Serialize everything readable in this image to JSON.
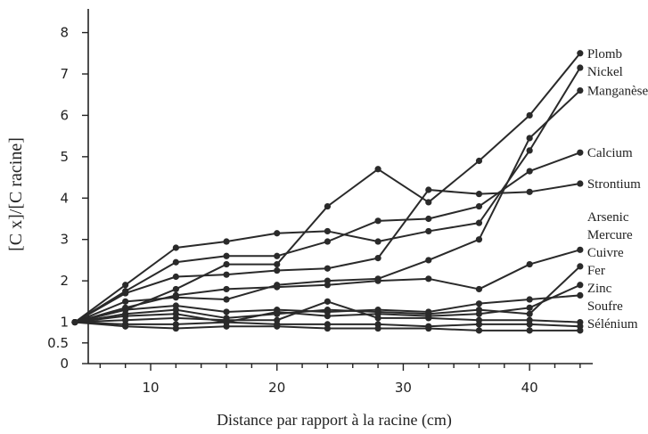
{
  "chart_data": {
    "type": "line",
    "title": "",
    "xlabel": "Distance par rapport à la racine (cm)",
    "ylabel": "[C x]/[C racine]",
    "xlim": [
      4,
      45
    ],
    "ylim": [
      0,
      8.4
    ],
    "x_ticks": [
      10,
      20,
      30,
      40
    ],
    "x_minor_ticks": [
      6,
      8,
      12,
      14,
      16,
      18,
      22,
      24,
      26,
      28,
      32,
      34,
      36,
      38,
      42,
      44
    ],
    "y_ticks": [
      {
        "value": 0,
        "label": "0"
      },
      {
        "value": 0.5,
        "label": "0.5"
      },
      {
        "value": 1,
        "label": "1"
      },
      {
        "value": 2,
        "label": "2"
      },
      {
        "value": 3,
        "label": "3"
      },
      {
        "value": 4,
        "label": "4"
      },
      {
        "value": 5,
        "label": "5"
      },
      {
        "value": 6,
        "label": "6"
      },
      {
        "value": 7,
        "label": "7"
      },
      {
        "value": 8,
        "label": "8"
      }
    ],
    "grid": false,
    "legend": "labels at right end of each series",
    "series": [
      {
        "name": "Plomb",
        "x": [
          4,
          8,
          12,
          16,
          20,
          24,
          28,
          32,
          36,
          40,
          44
        ],
        "values": [
          1,
          1.3,
          1.8,
          2.4,
          2.4,
          3.8,
          4.7,
          3.9,
          4.9,
          6.0,
          7.5
        ]
      },
      {
        "name": "Nickel",
        "x": [
          4,
          8,
          12,
          16,
          20,
          24,
          28,
          32,
          36,
          40,
          44
        ],
        "values": [
          1,
          1.9,
          2.8,
          2.95,
          3.15,
          3.2,
          2.95,
          3.2,
          3.4,
          5.15,
          7.15
        ]
      },
      {
        "name": "Manganèse",
        "x": [
          4,
          8,
          12,
          16,
          20,
          24,
          28,
          32,
          36,
          40,
          44
        ],
        "values": [
          1,
          1.5,
          1.6,
          1.55,
          1.9,
          2.0,
          2.05,
          2.5,
          3.0,
          5.45,
          6.6
        ]
      },
      {
        "name": "Calcium",
        "x": [
          4,
          8,
          12,
          16,
          20,
          24,
          28,
          32,
          36,
          40,
          44
        ],
        "values": [
          1,
          1.75,
          2.45,
          2.6,
          2.6,
          2.95,
          3.45,
          3.5,
          3.8,
          4.65,
          5.1
        ]
      },
      {
        "name": "Strontium",
        "x": [
          4,
          8,
          12,
          16,
          20,
          24,
          28,
          32,
          36,
          40,
          44
        ],
        "values": [
          1,
          1.7,
          2.1,
          2.15,
          2.25,
          2.3,
          2.55,
          4.2,
          4.1,
          4.15,
          4.35
        ]
      },
      {
        "name": "Arsenic",
        "x": [
          4,
          8,
          12,
          16,
          20,
          24,
          28,
          32,
          36,
          40,
          44
        ],
        "values": [
          1,
          1.35,
          1.65,
          1.8,
          1.85,
          1.9,
          2.0,
          2.05,
          1.8,
          2.4,
          2.75
        ]
      },
      {
        "name": "Mercure",
        "x": [
          4,
          8,
          12,
          16,
          20,
          24,
          28,
          32,
          36,
          40,
          44
        ],
        "values": [
          1,
          1.2,
          1.3,
          1.1,
          1.2,
          1.3,
          1.25,
          1.2,
          1.3,
          1.2,
          2.35
        ]
      },
      {
        "name": "Cuivre",
        "x": [
          4,
          8,
          12,
          16,
          20,
          24,
          28,
          32,
          36,
          40,
          44
        ],
        "values": [
          1,
          1.15,
          1.2,
          1.0,
          1.25,
          1.15,
          1.2,
          1.15,
          1.2,
          1.35,
          1.9
        ]
      },
      {
        "name": "Fer",
        "x": [
          4,
          8,
          12,
          16,
          20,
          24,
          28,
          32,
          36,
          40,
          44
        ],
        "values": [
          1,
          1.3,
          1.4,
          1.25,
          1.3,
          1.25,
          1.3,
          1.25,
          1.45,
          1.55,
          1.65
        ]
      },
      {
        "name": "Zinc",
        "x": [
          4,
          8,
          12,
          16,
          20,
          24,
          28,
          32,
          36,
          40,
          44
        ],
        "values": [
          1,
          1.05,
          1.1,
          1.05,
          1.05,
          1.5,
          1.1,
          1.1,
          1.05,
          1.05,
          1.0
        ]
      },
      {
        "name": "Soufre",
        "x": [
          4,
          8,
          12,
          16,
          20,
          24,
          28,
          32,
          36,
          40,
          44
        ],
        "values": [
          1,
          0.95,
          0.95,
          1.0,
          0.95,
          0.95,
          0.95,
          0.9,
          0.95,
          0.95,
          0.9
        ]
      },
      {
        "name": "Sélénium",
        "x": [
          4,
          8,
          12,
          16,
          20,
          24,
          28,
          32,
          36,
          40,
          44
        ],
        "values": [
          1,
          0.9,
          0.85,
          0.9,
          0.9,
          0.85,
          0.85,
          0.85,
          0.8,
          0.8,
          0.8
        ]
      }
    ]
  }
}
